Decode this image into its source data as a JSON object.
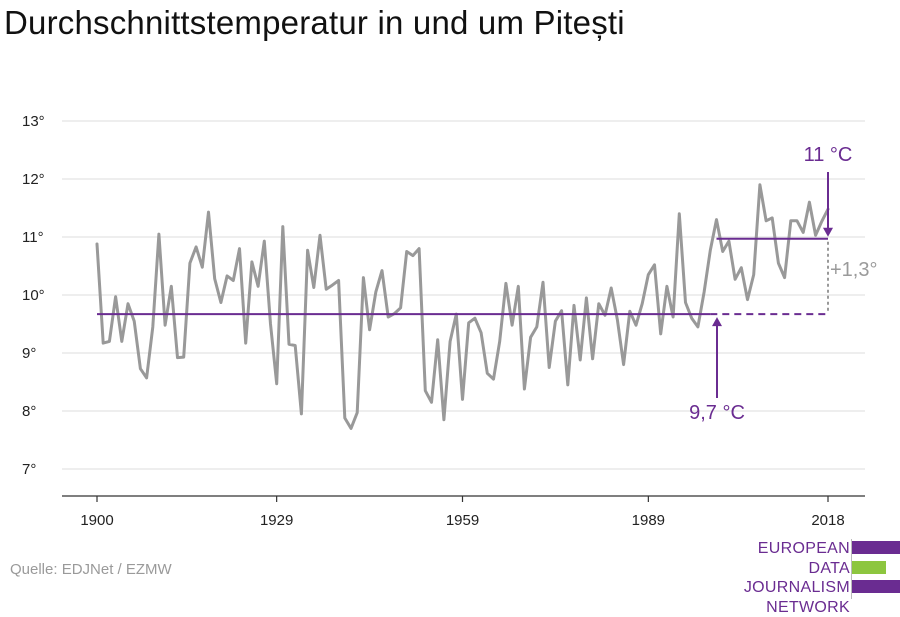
{
  "header": {
    "title": "Durchschnittstemperatur in und um Pitești"
  },
  "chart_data": {
    "type": "line",
    "title": "Durchschnittstemperatur in und um Pitești",
    "xlabel": "",
    "ylabel": "",
    "x_ticks": [
      "1900",
      "1929",
      "1959",
      "1989",
      "2018"
    ],
    "y_ticks": [
      "7°",
      "8°",
      "9°",
      "10°",
      "11°",
      "12°",
      "13°"
    ],
    "ylim": [
      7,
      13
    ],
    "xlim": [
      1900,
      2018
    ],
    "grid": "horizontal",
    "line_color": "#999999",
    "accent_color": "#6a2c91",
    "series": [
      {
        "x": [
          1900,
          1901,
          1902,
          1903,
          1904,
          1905,
          1906,
          1907,
          1908,
          1909,
          1910,
          1911,
          1912,
          1913,
          1914,
          1915,
          1916,
          1917,
          1918,
          1919,
          1920,
          1921,
          1922,
          1923,
          1924,
          1925,
          1926,
          1927,
          1928,
          1929,
          1930,
          1931,
          1932,
          1933,
          1934,
          1935,
          1936,
          1937,
          1938,
          1939,
          1940,
          1941,
          1942,
          1943,
          1944,
          1945,
          1946,
          1947,
          1948,
          1949,
          1950,
          1951,
          1952,
          1953,
          1954,
          1955,
          1956,
          1957,
          1958,
          1959,
          1960,
          1961,
          1962,
          1963,
          1964,
          1965,
          1966,
          1967,
          1968,
          1969,
          1970,
          1971,
          1972,
          1973,
          1974,
          1975,
          1976,
          1977,
          1978,
          1979,
          1980,
          1981,
          1982,
          1983,
          1984,
          1985,
          1986,
          1987,
          1988,
          1989,
          1990,
          1991,
          1992,
          1993,
          1994,
          1995,
          1996,
          1997,
          1998,
          1999,
          2000,
          2001,
          2002,
          2003,
          2004,
          2005,
          2006,
          2007,
          2008,
          2009,
          2010,
          2011,
          2012,
          2013,
          2014,
          2015,
          2016,
          2017,
          2018
        ],
        "values": [
          10.88,
          9.17,
          9.2,
          9.97,
          9.2,
          9.85,
          9.55,
          8.73,
          8.57,
          9.45,
          11.05,
          9.48,
          10.15,
          8.92,
          8.93,
          10.55,
          10.83,
          10.48,
          11.43,
          10.28,
          9.87,
          10.33,
          10.25,
          10.8,
          9.17,
          10.57,
          10.15,
          10.93,
          9.5,
          8.47,
          11.18,
          9.15,
          9.13,
          7.95,
          10.77,
          10.13,
          11.03,
          10.1,
          10.17,
          10.25,
          7.88,
          7.7,
          7.97,
          10.3,
          9.4,
          10.05,
          10.42,
          9.62,
          9.68,
          9.78,
          10.75,
          10.68,
          10.8,
          8.35,
          8.15,
          9.23,
          7.85,
          9.2,
          9.67,
          8.2,
          9.52,
          9.6,
          9.35,
          8.65,
          8.55,
          9.2,
          10.2,
          9.48,
          10.15,
          8.38,
          9.27,
          9.45,
          10.22,
          8.75,
          9.55,
          9.73,
          8.45,
          9.82,
          8.88,
          9.95,
          8.9,
          9.85,
          9.65,
          10.12,
          9.57,
          8.8,
          9.72,
          9.48,
          9.85,
          10.35,
          10.52,
          9.33,
          10.15,
          9.62,
          11.4,
          9.87,
          9.6,
          9.45,
          10.05,
          10.77,
          11.3,
          10.75,
          10.93,
          10.27,
          10.47,
          9.92,
          10.35,
          11.9,
          11.28,
          11.33,
          10.55,
          10.3,
          11.28,
          11.28,
          11.08,
          11.6,
          11.03,
          11.27,
          11.48
        ]
      }
    ],
    "annotations": {
      "baseline_label": "9,7 °C",
      "baseline_value": 9.67,
      "baseline_start": 1900,
      "baseline_solid_end": 1999,
      "baseline_dashed_end": 2018,
      "recent_label": "11 °C",
      "recent_value": 10.97,
      "recent_start": 2000,
      "recent_end": 2018,
      "diff_label": "+1,3°"
    }
  },
  "footer": {
    "source": "Quelle: EDJNet / EZMW",
    "logo_lines": [
      "EUROPEAN",
      "DATA JOURNALISM",
      "NETWORK"
    ],
    "logo_colors": [
      "#6a2c91",
      "#8dc63f",
      "#6a2c91"
    ]
  }
}
